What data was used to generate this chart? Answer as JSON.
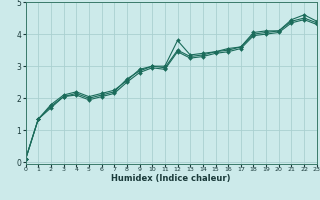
{
  "title": "",
  "xlabel": "Humidex (Indice chaleur)",
  "ylabel": "",
  "bg_color": "#cceaea",
  "grid_color": "#aad0d0",
  "line_color": "#1a6b5a",
  "xlim": [
    0,
    23
  ],
  "ylim": [
    -0.05,
    5.0
  ],
  "yticks": [
    0,
    1,
    2,
    3,
    4,
    5
  ],
  "xticks": [
    0,
    1,
    2,
    3,
    4,
    5,
    6,
    7,
    8,
    9,
    10,
    11,
    12,
    13,
    14,
    15,
    16,
    17,
    18,
    19,
    20,
    21,
    22,
    23
  ],
  "series1_x": [
    0,
    1,
    2,
    3,
    4,
    5,
    6,
    7,
    8,
    9,
    10,
    11,
    12,
    13,
    14,
    15,
    16,
    17,
    18,
    19,
    20,
    21,
    22,
    23
  ],
  "series1_y": [
    0.1,
    1.35,
    1.75,
    2.05,
    2.15,
    2.0,
    2.1,
    2.2,
    2.6,
    2.85,
    3.0,
    3.0,
    3.8,
    3.35,
    3.4,
    3.45,
    3.55,
    3.6,
    4.05,
    4.1,
    4.1,
    4.45,
    4.6,
    4.4
  ],
  "series2_x": [
    0,
    1,
    2,
    3,
    4,
    5,
    6,
    7,
    8,
    9,
    10,
    11,
    12,
    13,
    14,
    15,
    16,
    17,
    18,
    19,
    20,
    21,
    22,
    23
  ],
  "series2_y": [
    0.1,
    1.35,
    1.8,
    2.1,
    2.2,
    2.05,
    2.15,
    2.25,
    2.55,
    2.9,
    3.0,
    2.95,
    3.5,
    3.3,
    3.35,
    3.45,
    3.5,
    3.6,
    4.0,
    4.05,
    4.1,
    4.4,
    4.5,
    4.35
  ],
  "series3_x": [
    0,
    1,
    2,
    3,
    4,
    5,
    6,
    7,
    8,
    9,
    10,
    11,
    12,
    13,
    14,
    15,
    16,
    17,
    18,
    19,
    20,
    21,
    22,
    23
  ],
  "series3_y": [
    0.1,
    1.35,
    1.7,
    2.05,
    2.1,
    1.95,
    2.05,
    2.15,
    2.5,
    2.8,
    2.95,
    2.9,
    3.45,
    3.25,
    3.3,
    3.4,
    3.45,
    3.55,
    3.95,
    4.0,
    4.05,
    4.35,
    4.45,
    4.3
  ]
}
